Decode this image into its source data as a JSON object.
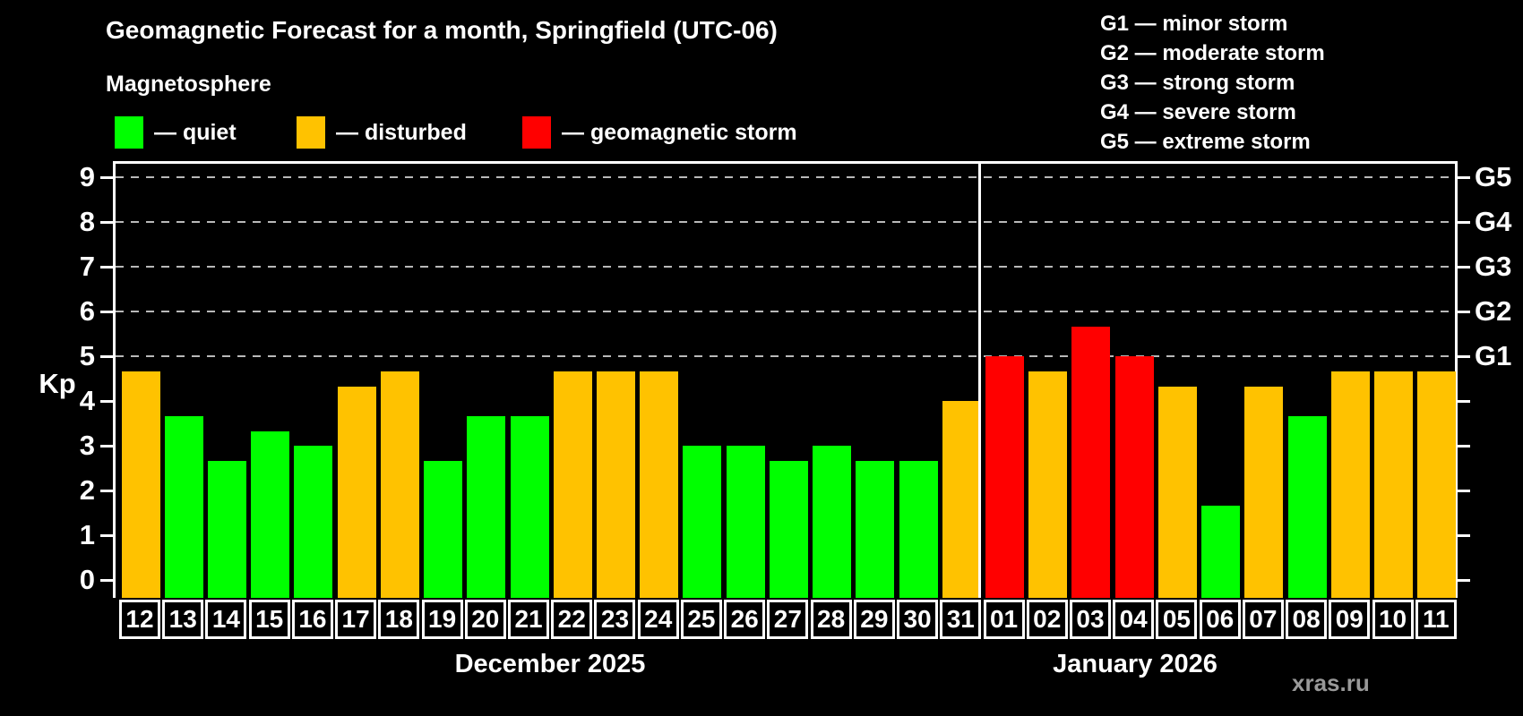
{
  "title": "Geomagnetic Forecast for a month, Springfield (UTC-06)",
  "subtitle": "Magnetosphere",
  "legend": {
    "items": [
      {
        "key": "quiet",
        "label": "— quiet",
        "color": "#00ff00"
      },
      {
        "key": "disturbed",
        "label": "— disturbed",
        "color": "#ffc200"
      },
      {
        "key": "storm",
        "label": "— geomagnetic storm",
        "color": "#ff0000"
      }
    ]
  },
  "g_legend": [
    "G1 — minor storm",
    "G2 — moderate storm",
    "G3 — strong storm",
    "G4 — severe storm",
    "G5 — extreme storm"
  ],
  "watermark": "xras.ru",
  "chart_data": {
    "type": "bar",
    "title": "Geomagnetic Forecast for a month, Springfield (UTC-06)",
    "ylabel": "Kp",
    "ylim": [
      0,
      9
    ],
    "y_ticks": [
      0,
      1,
      2,
      3,
      4,
      5,
      6,
      7,
      8,
      9
    ],
    "gridlines_at_kp": [
      5,
      6,
      7,
      8,
      9
    ],
    "right_axis_labels": [
      {
        "kp": 5,
        "label": "G1"
      },
      {
        "kp": 6,
        "label": "G2"
      },
      {
        "kp": 7,
        "label": "G3"
      },
      {
        "kp": 8,
        "label": "G4"
      },
      {
        "kp": 9,
        "label": "G5"
      }
    ],
    "status_colors": {
      "quiet": "#00ff00",
      "disturbed": "#ffc200",
      "storm": "#ff0000"
    },
    "months": [
      {
        "label": "December 2025",
        "days": [
          "12",
          "13",
          "14",
          "15",
          "16",
          "17",
          "18",
          "19",
          "20",
          "21",
          "22",
          "23",
          "24",
          "25",
          "26",
          "27",
          "28",
          "29",
          "30",
          "31"
        ],
        "values": [
          4.67,
          3.67,
          2.67,
          3.33,
          3.0,
          4.33,
          4.67,
          2.67,
          3.67,
          3.67,
          4.67,
          4.67,
          4.67,
          3.0,
          3.0,
          2.67,
          3.0,
          2.67,
          2.67,
          4.0
        ],
        "statuses": [
          "disturbed",
          "quiet",
          "quiet",
          "quiet",
          "quiet",
          "disturbed",
          "disturbed",
          "quiet",
          "quiet",
          "quiet",
          "disturbed",
          "disturbed",
          "disturbed",
          "quiet",
          "quiet",
          "quiet",
          "quiet",
          "quiet",
          "quiet",
          "disturbed"
        ]
      },
      {
        "label": "January 2026",
        "days": [
          "01",
          "02",
          "03",
          "04",
          "05",
          "06",
          "07",
          "08",
          "09",
          "10",
          "11"
        ],
        "values": [
          5.0,
          4.67,
          5.67,
          5.0,
          4.33,
          1.67,
          4.33,
          3.67,
          4.67,
          4.67,
          4.67
        ],
        "statuses": [
          "storm",
          "disturbed",
          "storm",
          "storm",
          "disturbed",
          "quiet",
          "disturbed",
          "quiet",
          "disturbed",
          "disturbed",
          "disturbed"
        ]
      }
    ]
  }
}
